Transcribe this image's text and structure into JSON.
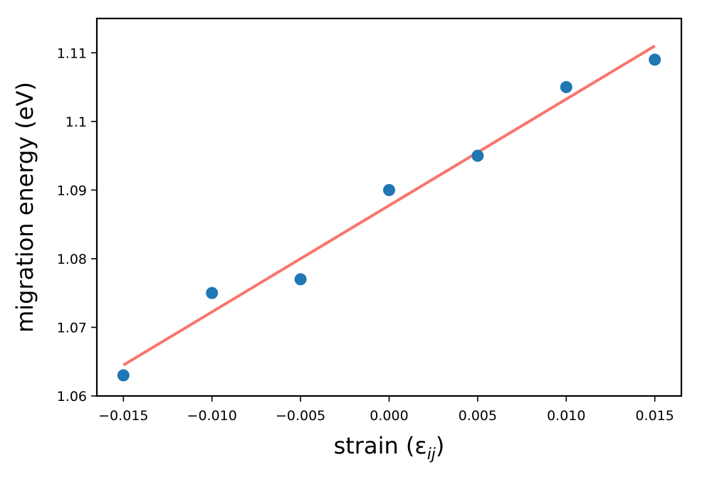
{
  "chart_data": {
    "type": "scatter",
    "title": "",
    "xlabel": "strain (ε",
    "xlabel_subscript": "ij",
    "xlabel_close": ")",
    "ylabel": "migration energy (eV)",
    "xlim": [
      -0.0165,
      0.0165
    ],
    "ylim": [
      1.06,
      1.115
    ],
    "x_ticks": [
      -0.015,
      -0.01,
      -0.005,
      0.0,
      0.005,
      0.01,
      0.015
    ],
    "x_tick_labels": [
      "−0.015",
      "−0.010",
      "−0.005",
      "0.000",
      "0.005",
      "0.010",
      "0.015"
    ],
    "y_ticks": [
      1.06,
      1.07,
      1.08,
      1.09,
      1.1,
      1.11
    ],
    "y_tick_labels": [
      "1.06",
      "1.07",
      "1.08",
      "1.09",
      "1.1",
      "1.11"
    ],
    "grid": false,
    "series": [
      {
        "type": "scatter",
        "color": "#1f77b4",
        "x": [
          -0.015,
          -0.01,
          -0.005,
          0.0,
          0.005,
          0.01,
          0.015
        ],
        "y": [
          1.063,
          1.075,
          1.077,
          1.09,
          1.095,
          1.105,
          1.109
        ]
      },
      {
        "type": "line",
        "color": "#f8766d",
        "x": [
          -0.015,
          0.015
        ],
        "y": [
          1.0645,
          1.111
        ]
      }
    ]
  }
}
